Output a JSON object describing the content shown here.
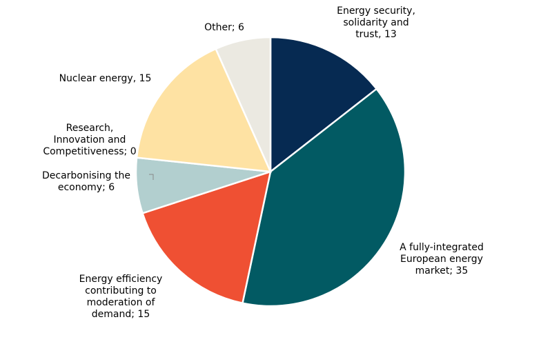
{
  "chart_data": {
    "type": "pie",
    "title": "",
    "slices": [
      {
        "label": "Energy security,\nsolidarity and\ntrust, 13",
        "value": 13,
        "color": "#062a52"
      },
      {
        "label": "A fully-integrated\nEuropean energy\nmarket; 35",
        "value": 35,
        "color": "#025a63"
      },
      {
        "label": "Energy efficiency\ncontributing to\nmoderation of\ndemand; 15",
        "value": 15,
        "color": "#ef5033"
      },
      {
        "label": "Decarbonising the\neconomy; 6",
        "value": 6,
        "color": "#b2cfcf"
      },
      {
        "label": "Research,\nInnovation and\nCompetitiveness; 0",
        "value": 0,
        "color": "#d9d9d9"
      },
      {
        "label": "Nuclear energy, 15",
        "value": 15,
        "color": "#fee2a3"
      },
      {
        "label": "Other; 6",
        "value": 6,
        "color": "#ebe9e1"
      }
    ]
  }
}
